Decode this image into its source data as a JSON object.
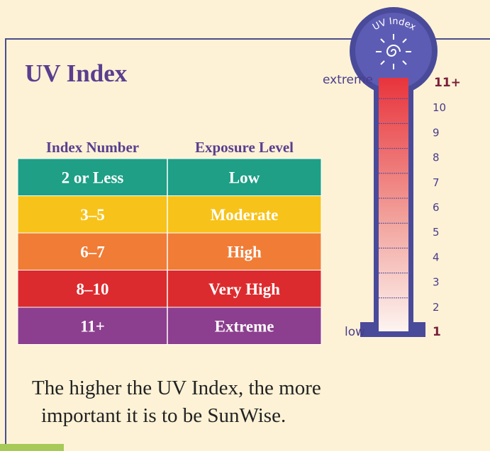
{
  "title": "UV Index",
  "table": {
    "headers": [
      "Index Number",
      "Exposure Level"
    ],
    "rows": [
      [
        "2 or Less",
        "Low"
      ],
      [
        "3–5",
        "Moderate"
      ],
      [
        "6–7",
        "High"
      ],
      [
        "8–10",
        "Very High"
      ],
      [
        "11+",
        "Extreme"
      ]
    ]
  },
  "gauge": {
    "badge": "UV Index",
    "top_label": "extreme",
    "bottom_label": "low",
    "scale": [
      "11+",
      "10",
      "9",
      "8",
      "7",
      "6",
      "5",
      "4",
      "3",
      "2",
      "1"
    ]
  },
  "footer": [
    "The higher the UV Index, the more",
    "important it is to be SunWise."
  ]
}
